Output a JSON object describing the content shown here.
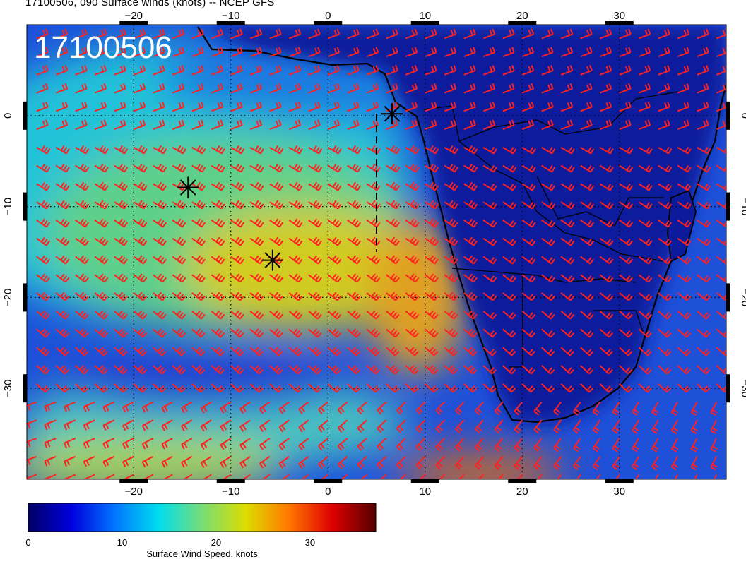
{
  "title": "17100506, 090 Surface winds (knots) -- NCEP GFS",
  "stamp": "17100506",
  "map": {
    "lon_range": [
      -31,
      41
    ],
    "lat_range": [
      -40,
      10
    ],
    "lon_ticks": [
      -20,
      -10,
      0,
      10,
      20,
      30
    ],
    "lat_ticks": [
      0,
      -10,
      -20,
      -30
    ],
    "lon_tick_labels": [
      "−20",
      "−10",
      "0",
      "10",
      "20",
      "30"
    ],
    "lat_tick_labels": [
      "0",
      "−10",
      "−20",
      "−30"
    ],
    "graticule": "dotted, every 10 degrees",
    "barb_color": "#ff2020",
    "coastline_color": "#000000"
  },
  "markers": [
    {
      "name": "asterisk-1",
      "lon": 6.6,
      "lat": 0.2
    },
    {
      "name": "asterisk-2",
      "lon": -14.4,
      "lat": -7.9
    },
    {
      "name": "asterisk-3",
      "lon": -5.7,
      "lat": -15.9
    }
  ],
  "track": {
    "style": "dashed",
    "points": [
      [
        5,
        0.2
      ],
      [
        5,
        -15
      ]
    ]
  },
  "colorbar": {
    "label": "Surface Wind Speed, knots",
    "range": [
      0,
      37
    ],
    "ticks": [
      0,
      10,
      20,
      30
    ],
    "tick_labels": [
      "0",
      "10",
      "20",
      "30"
    ],
    "colors": [
      "#000066",
      "#0000dd",
      "#0077ff",
      "#00ddee",
      "#77dd77",
      "#dddd00",
      "#ff7700",
      "#dd0000",
      "#550000"
    ]
  }
}
